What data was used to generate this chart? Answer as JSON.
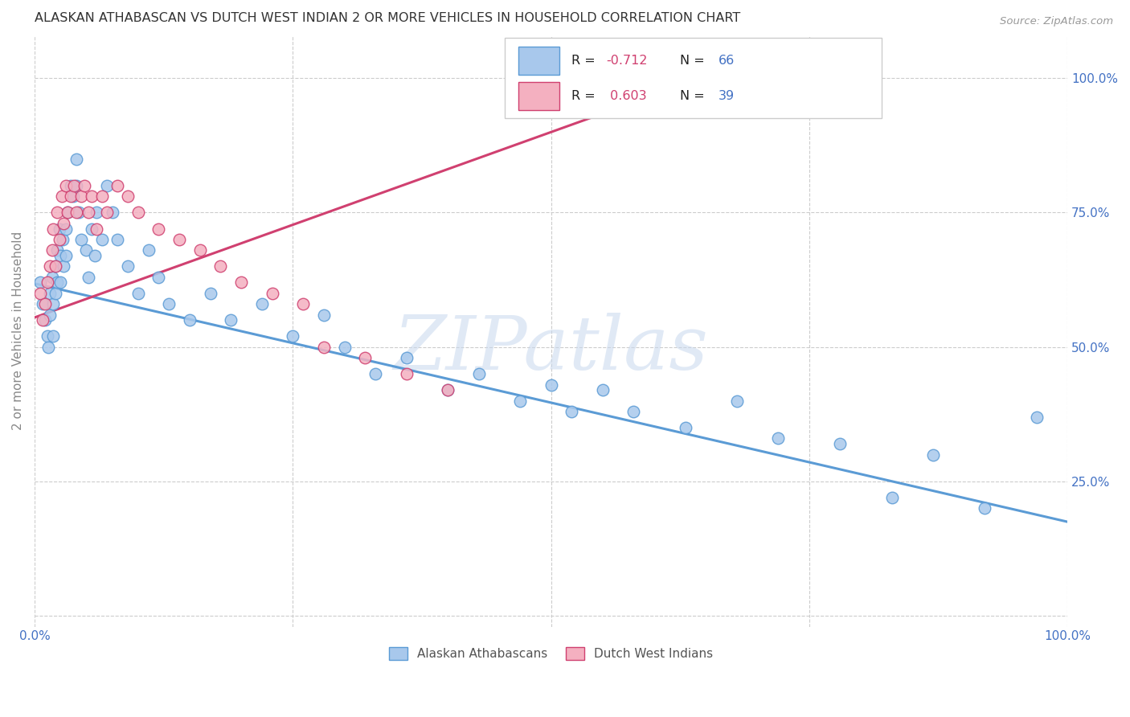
{
  "title": "ALASKAN ATHABASCAN VS DUTCH WEST INDIAN 2 OR MORE VEHICLES IN HOUSEHOLD CORRELATION CHART",
  "source": "Source: ZipAtlas.com",
  "ylabel": "2 or more Vehicles in Household",
  "xlim": [
    0.0,
    1.0
  ],
  "ylim": [
    -0.02,
    1.08
  ],
  "ytick_values": [
    0.0,
    0.25,
    0.5,
    0.75,
    1.0
  ],
  "ytick_labels_right": [
    "",
    "25.0%",
    "50.0%",
    "75.0%",
    "100.0%"
  ],
  "xtick_values": [
    0.0,
    0.25,
    0.5,
    0.75,
    1.0
  ],
  "xtick_labels": [
    "0.0%",
    "",
    "",
    "",
    "100.0%"
  ],
  "color_blue_fill": "#A8C8EC",
  "color_blue_edge": "#5B9BD5",
  "color_pink_fill": "#F4B0C0",
  "color_pink_edge": "#D04070",
  "color_blue_text": "#4472C4",
  "color_pink_text": "#D04070",
  "color_grid": "#CCCCCC",
  "color_bg": "#FFFFFF",
  "color_title": "#333333",
  "color_source": "#999999",
  "color_axis_label": "#888888",
  "color_right_tick": "#4472C4",
  "watermark_text": "ZIPatlas",
  "watermark_color": "#C8D8EE",
  "legend_label_blue": "Alaskan Athabascans",
  "legend_label_pink": "Dutch West Indians",
  "r_blue": "-0.712",
  "n_blue": "66",
  "r_pink": "0.603",
  "n_pink": "39",
  "blue_x": [
    0.005,
    0.008,
    0.01,
    0.012,
    0.013,
    0.015,
    0.015,
    0.017,
    0.018,
    0.018,
    0.02,
    0.02,
    0.022,
    0.022,
    0.024,
    0.025,
    0.025,
    0.027,
    0.028,
    0.03,
    0.03,
    0.032,
    0.035,
    0.037,
    0.04,
    0.04,
    0.043,
    0.045,
    0.05,
    0.052,
    0.055,
    0.058,
    0.06,
    0.065,
    0.07,
    0.075,
    0.08,
    0.09,
    0.1,
    0.11,
    0.12,
    0.13,
    0.15,
    0.17,
    0.19,
    0.22,
    0.25,
    0.28,
    0.3,
    0.33,
    0.36,
    0.4,
    0.43,
    0.47,
    0.5,
    0.52,
    0.55,
    0.58,
    0.63,
    0.68,
    0.72,
    0.78,
    0.83,
    0.87,
    0.92,
    0.97
  ],
  "blue_y": [
    0.62,
    0.58,
    0.55,
    0.52,
    0.5,
    0.6,
    0.56,
    0.63,
    0.58,
    0.52,
    0.65,
    0.6,
    0.68,
    0.62,
    0.72,
    0.67,
    0.62,
    0.7,
    0.65,
    0.72,
    0.67,
    0.75,
    0.8,
    0.78,
    0.85,
    0.8,
    0.75,
    0.7,
    0.68,
    0.63,
    0.72,
    0.67,
    0.75,
    0.7,
    0.8,
    0.75,
    0.7,
    0.65,
    0.6,
    0.68,
    0.63,
    0.58,
    0.55,
    0.6,
    0.55,
    0.58,
    0.52,
    0.56,
    0.5,
    0.45,
    0.48,
    0.42,
    0.45,
    0.4,
    0.43,
    0.38,
    0.42,
    0.38,
    0.35,
    0.4,
    0.33,
    0.32,
    0.22,
    0.3,
    0.2,
    0.37
  ],
  "pink_x": [
    0.005,
    0.008,
    0.01,
    0.012,
    0.015,
    0.017,
    0.018,
    0.02,
    0.022,
    0.024,
    0.026,
    0.028,
    0.03,
    0.032,
    0.035,
    0.038,
    0.04,
    0.045,
    0.048,
    0.052,
    0.055,
    0.06,
    0.065,
    0.07,
    0.08,
    0.09,
    0.1,
    0.12,
    0.14,
    0.16,
    0.18,
    0.2,
    0.23,
    0.26,
    0.28,
    0.32,
    0.36,
    0.4,
    0.65
  ],
  "pink_y": [
    0.6,
    0.55,
    0.58,
    0.62,
    0.65,
    0.68,
    0.72,
    0.65,
    0.75,
    0.7,
    0.78,
    0.73,
    0.8,
    0.75,
    0.78,
    0.8,
    0.75,
    0.78,
    0.8,
    0.75,
    0.78,
    0.72,
    0.78,
    0.75,
    0.8,
    0.78,
    0.75,
    0.72,
    0.7,
    0.68,
    0.65,
    0.62,
    0.6,
    0.58,
    0.5,
    0.48,
    0.45,
    0.42,
    1.01
  ],
  "blue_line_x": [
    0.0,
    1.0
  ],
  "blue_line_y": [
    0.618,
    0.175
  ],
  "pink_line_x": [
    0.0,
    0.66
  ],
  "pink_line_y": [
    0.555,
    1.01
  ]
}
